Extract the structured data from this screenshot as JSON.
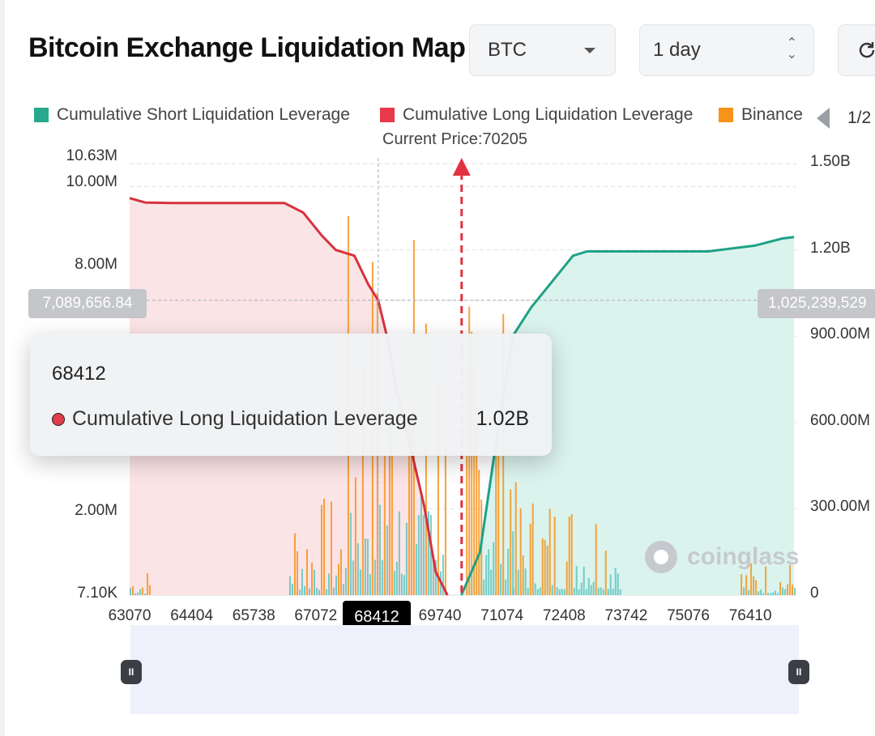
{
  "header": {
    "title": "Bitcoin Exchange Liquidation Map",
    "coin_select": "BTC",
    "range_select": "1 day",
    "refresh_icon": "refresh-icon"
  },
  "legend": {
    "items": [
      {
        "label": "Cumulative Short Liquidation Leverage",
        "color": "#26a98c"
      },
      {
        "label": "Cumulative Long Liquidation Leverage",
        "color": "#e8394a"
      },
      {
        "label": "Binance",
        "color": "#f7931a"
      }
    ],
    "page": "1/2"
  },
  "current_price_label": "Current Price:70205",
  "crosshair": {
    "x_label": "68412",
    "left_label": "7,089,656.84",
    "right_label": "1,025,239,529"
  },
  "tooltip": {
    "title": "68412",
    "series": "Cumulative Long Liquidation Leverage",
    "value": "1.02B"
  },
  "watermark": "coinglass",
  "chart_data": {
    "type": "bar",
    "current_price": 70205,
    "x_ticks": [
      "63070",
      "64404",
      "65738",
      "67072",
      "68412",
      "69740",
      "71074",
      "72408",
      "73742",
      "75076",
      "76410"
    ],
    "x_range": [
      63070,
      77400
    ],
    "left_axis": {
      "ticks": [
        "10.63M",
        "10.00M",
        "8.00M",
        "2.00M",
        "7.10K"
      ],
      "range": [
        7100,
        10630000
      ]
    },
    "right_axis": {
      "ticks": [
        "1.50B",
        "1.20B",
        "900.00M",
        "600.00M",
        "300.00M",
        "0"
      ],
      "range": [
        0,
        1520000000
      ]
    },
    "series": [
      {
        "name": "Cumulative Long Liquidation Leverage",
        "axis": "right",
        "points": [
          [
            63070,
            1380000000
          ],
          [
            63400,
            1365000000
          ],
          [
            64000,
            1363000000
          ],
          [
            66400,
            1363000000
          ],
          [
            66800,
            1330000000
          ],
          [
            67200,
            1250000000
          ],
          [
            67500,
            1200000000
          ],
          [
            67900,
            1180000000
          ],
          [
            68200,
            1080000000
          ],
          [
            68412,
            1025000000
          ],
          [
            68600,
            900000000
          ],
          [
            68800,
            720000000
          ],
          [
            69100,
            520000000
          ],
          [
            69400,
            310000000
          ],
          [
            69650,
            80000000
          ],
          [
            69900,
            0
          ]
        ]
      },
      {
        "name": "Cumulative Short Liquidation Leverage",
        "axis": "right",
        "points": [
          [
            70200,
            0
          ],
          [
            70600,
            150000000
          ],
          [
            70900,
            480000000
          ],
          [
            71300,
            900000000
          ],
          [
            71700,
            1000000000
          ],
          [
            72100,
            1080000000
          ],
          [
            72600,
            1180000000
          ],
          [
            72900,
            1195000000
          ],
          [
            75500,
            1195000000
          ],
          [
            76500,
            1215000000
          ],
          [
            77100,
            1240000000
          ],
          [
            77350,
            1245000000
          ]
        ]
      },
      {
        "name": "Binance",
        "axis": "left",
        "clusters": [
          {
            "from": 63070,
            "to": 63500,
            "peak": 700000
          },
          {
            "from": 66500,
            "to": 67700,
            "peak": 2500000
          },
          {
            "from": 67700,
            "to": 69850,
            "peak": 9500000
          },
          {
            "from": 70300,
            "to": 71300,
            "peak": 7500000
          },
          {
            "from": 71300,
            "to": 73600,
            "peak": 2800000
          },
          {
            "from": 76200,
            "to": 77400,
            "peak": 900000
          }
        ]
      }
    ],
    "grid": true,
    "legend_position": "top"
  }
}
